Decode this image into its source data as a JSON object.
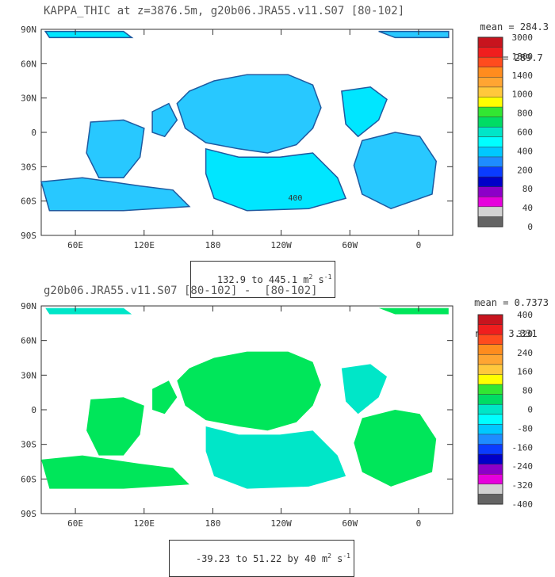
{
  "panels": [
    {
      "title": "KAPPA_THIC at z=3876.5m, g20b06.JRA55.v11.S07 [80-102]",
      "mean": "mean = 284.3",
      "rms": "rms = 289.7",
      "range_text": "132.9 to 445.1 m",
      "range_unit_exp": "2",
      "range_tail": " s",
      "range_tail_exp": "-1",
      "contour_label": "400",
      "colorbar_labels": [
        "3000",
        "1800",
        "1400",
        "1000",
        "800",
        "600",
        "400",
        "200",
        "80",
        "40",
        "0"
      ],
      "colorbar_colors": [
        "#c8141e",
        "#f01e1e",
        "#ff4b1e",
        "#ff8c1e",
        "#ffa532",
        "#ffc83c",
        "#ffff00",
        "#32e632",
        "#00dc64",
        "#00e6c8",
        "#00ffff",
        "#00c8ff",
        "#1e8cff",
        "#0a3cff",
        "#0000c8",
        "#8c00c8",
        "#e600dc",
        "#d2d2d2",
        "#646464"
      ],
      "color_land_note": "",
      "fill_main": "#28c8ff",
      "fill_alt": "#00e6ff"
    },
    {
      "title": "g20b06.JRA55.v11.S07 [80-102] -  [80-102]",
      "mean": "mean = 0.7373",
      "rms": "rms = 3.331",
      "range_text": "-39.23 to 51.22 by 40 m",
      "range_unit_exp": "2",
      "range_tail": " s",
      "range_tail_exp": "-1",
      "contour_label": "",
      "colorbar_labels": [
        "400",
        "320",
        "240",
        "160",
        "80",
        "0",
        "-80",
        "-160",
        "-240",
        "-320",
        "-400"
      ],
      "colorbar_colors": [
        "#c8141e",
        "#f01e1e",
        "#ff4b1e",
        "#ff8c1e",
        "#ffa532",
        "#ffc83c",
        "#ffff00",
        "#32e632",
        "#00dc64",
        "#00e6c8",
        "#00ffff",
        "#00c8ff",
        "#1e8cff",
        "#0a3cff",
        "#0000c8",
        "#8c00c8",
        "#e600dc",
        "#d2d2d2",
        "#646464"
      ],
      "fill_main": "#00e65a",
      "fill_alt": "#00e6c8"
    }
  ],
  "axes": {
    "lat_labels": [
      "90N",
      "60N",
      "30N",
      "0",
      "30S",
      "60S",
      "90S"
    ],
    "lon_labels": [
      "60E",
      "120E",
      "180",
      "120W",
      "60W",
      "0"
    ]
  }
}
